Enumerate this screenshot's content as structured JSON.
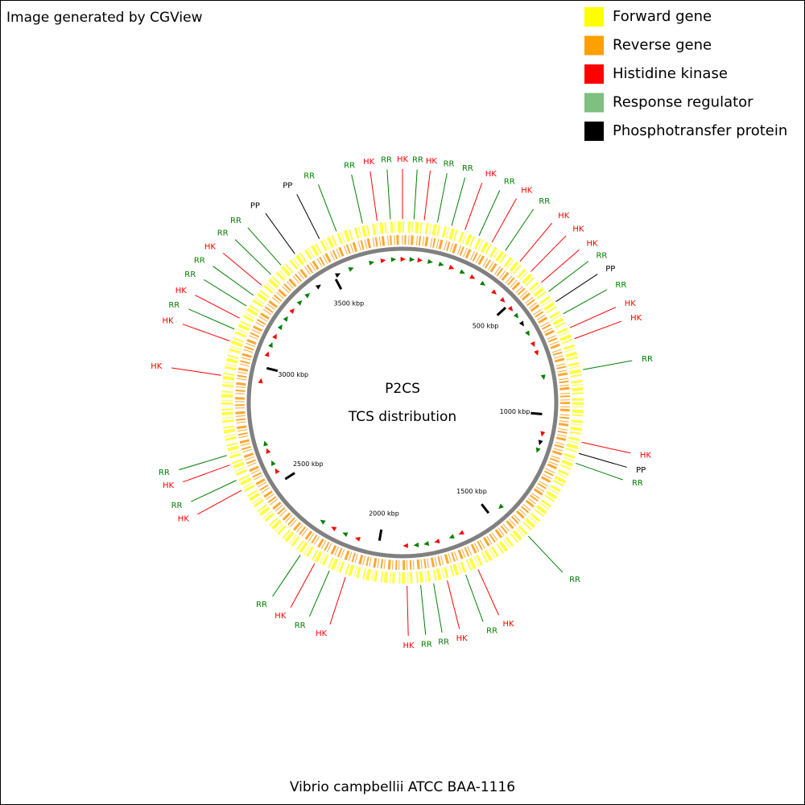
{
  "header": {
    "title": "Image generated by CGView"
  },
  "legend": [
    {
      "label": "Forward gene",
      "color": "#ffff00"
    },
    {
      "label": "Reverse gene",
      "color": "#ff9f00"
    },
    {
      "label": "Histidine kinase",
      "color": "#ff0000"
    },
    {
      "label": "Response regulator",
      "color": "#7fbf7f"
    },
    {
      "label": "Phosphotransfer protein",
      "color": "#000000"
    }
  ],
  "map": {
    "title": "P2CS",
    "subtitle": "TCS distribution",
    "xlim": [
      0,
      3800
    ],
    "xticks": [
      {
        "value": 500,
        "label": "500 kbp"
      },
      {
        "value": 1000,
        "label": "1000 kbp"
      },
      {
        "value": 1500,
        "label": "1500 kbp"
      },
      {
        "value": 2000,
        "label": "2000 kbp"
      },
      {
        "value": 2500,
        "label": "2500 kbp"
      },
      {
        "value": 3000,
        "label": "3000 kbp"
      },
      {
        "value": 3500,
        "label": "3500 kbp"
      }
    ],
    "label_colors": {
      "HK": "#ff0000",
      "RR": "#008000",
      "PP": "#000000"
    },
    "features": [
      {
        "label": "HK",
        "position": 0
      },
      {
        "label": "RR",
        "position": 38
      },
      {
        "label": "HK",
        "position": 72
      },
      {
        "label": "RR",
        "position": 116
      },
      {
        "label": "RR",
        "position": 164
      },
      {
        "label": "HK",
        "position": 210
      },
      {
        "label": "RR",
        "position": 260
      },
      {
        "label": "HK",
        "position": 308
      },
      {
        "label": "RR",
        "position": 360
      },
      {
        "label": "HK",
        "position": 420
      },
      {
        "label": "HK",
        "position": 469
      },
      {
        "label": "HK",
        "position": 519
      },
      {
        "label": "RR",
        "position": 557
      },
      {
        "label": "PP",
        "position": 598
      },
      {
        "label": "RR",
        "position": 645
      },
      {
        "label": "HK",
        "position": 696
      },
      {
        "label": "HK",
        "position": 735
      },
      {
        "label": "RR",
        "position": 841
      },
      {
        "label": "HK",
        "position": 1082
      },
      {
        "label": "PP",
        "position": 1120
      },
      {
        "label": "RR",
        "position": 1154
      },
      {
        "label": "RR",
        "position": 1443
      },
      {
        "label": "HK",
        "position": 1643
      },
      {
        "label": "RR",
        "position": 1687
      },
      {
        "label": "HK",
        "position": 1751
      },
      {
        "label": "RR",
        "position": 1797
      },
      {
        "label": "RR",
        "position": 1840
      },
      {
        "label": "HK",
        "position": 1885
      },
      {
        "label": "HK",
        "position": 2091
      },
      {
        "label": "RR",
        "position": 2148
      },
      {
        "label": "HK",
        "position": 2202
      },
      {
        "label": "RR",
        "position": 2257
      },
      {
        "label": "HK",
        "position": 2548
      },
      {
        "label": "RR",
        "position": 2585
      },
      {
        "label": "HK",
        "position": 2640
      },
      {
        "label": "RR",
        "position": 2673
      },
      {
        "label": "HK",
        "position": 2940
      },
      {
        "label": "HK",
        "position": 3057
      },
      {
        "label": "RR",
        "position": 3099
      },
      {
        "label": "HK",
        "position": 3139
      },
      {
        "label": "RR",
        "position": 3185
      },
      {
        "label": "RR",
        "position": 3227
      },
      {
        "label": "HK",
        "position": 3270
      },
      {
        "label": "RR",
        "position": 3317
      },
      {
        "label": "RR",
        "position": 3362
      },
      {
        "label": "PP",
        "position": 3421
      },
      {
        "label": "PP",
        "position": 3516
      },
      {
        "label": "RR",
        "position": 3577
      },
      {
        "label": "RR",
        "position": 3667
      },
      {
        "label": "HK",
        "position": 3716
      },
      {
        "label": "RR",
        "position": 3760
      }
    ]
  },
  "caption": "Vibrio campbellii ATCC BAA-1116"
}
